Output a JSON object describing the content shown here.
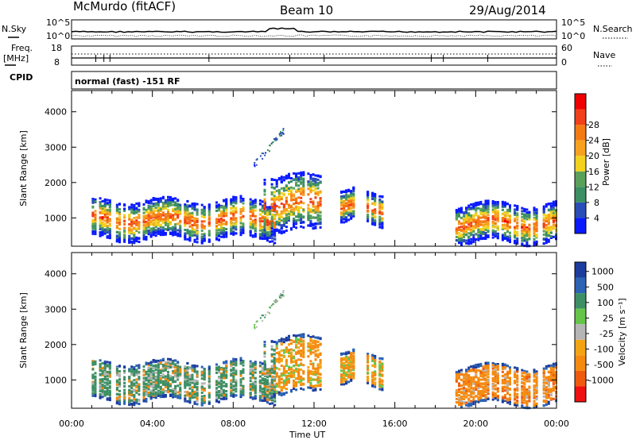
{
  "header": {
    "station": "McMurdo (fitACF)",
    "beam": "Beam 10",
    "date": "29/Aug/2014"
  },
  "top_panels": {
    "nsky_label": "N.Sky",
    "nsearch_label": "N.Search",
    "noise_ticks": [
      "10^5",
      "10^0"
    ],
    "freq_label": "Freq.",
    "freq_unit": "[MHz]",
    "freq_ticks": [
      "18",
      "8"
    ],
    "nave_label": "Nave",
    "nave_ticks": [
      "60",
      "0"
    ],
    "cpid_label": "CPID",
    "cpid_text": "normal (fast) -151 RF"
  },
  "colors": {
    "power_scale": [
      "#0a1aff",
      "#2a4db8",
      "#3b8f62",
      "#59a05a",
      "#f2d21c",
      "#f7a21e",
      "#f47a12",
      "#f2401a",
      "#f00000"
    ],
    "velocity_scale": [
      "#1c3c9e",
      "#2c63b5",
      "#3c8f64",
      "#65c54a",
      "#b5b5b5",
      "#f4a413",
      "#f58a0f",
      "#f05a0f",
      "#f01010"
    ]
  },
  "chart_data": [
    {
      "type": "heatmap",
      "name": "power-panel",
      "ylabel": "Slant Range [km]",
      "yticks": [
        1000,
        2000,
        3000,
        4000
      ],
      "ylim": [
        200,
        4600
      ],
      "xticks": [
        "00:00",
        "04:00",
        "08:00",
        "12:00",
        "16:00",
        "20:00",
        "00:00"
      ],
      "xlim_hours": [
        0,
        24
      ],
      "colorbar": {
        "label": "Power [dB]",
        "ticks": [
          "4",
          "8",
          "12",
          "16",
          "20",
          "24",
          "28"
        ],
        "range": [
          0,
          32
        ]
      },
      "echo_bands": [
        {
          "start_hour": 1.0,
          "end_hour": 10.0,
          "range_low_km": 400,
          "range_high_km": 1500
        },
        {
          "start_hour": 9.5,
          "end_hour": 12.3,
          "range_low_km": 600,
          "range_high_km": 2200
        },
        {
          "start_hour": 13.3,
          "end_hour": 14.0,
          "range_low_km": 900,
          "range_high_km": 1800
        },
        {
          "start_hour": 14.6,
          "end_hour": 15.5,
          "range_low_km": 800,
          "range_high_km": 1700
        },
        {
          "start_hour": 19.0,
          "end_hour": 24.0,
          "range_low_km": 300,
          "range_high_km": 1400
        }
      ]
    },
    {
      "type": "heatmap",
      "name": "velocity-panel",
      "ylabel": "Slant Range [km]",
      "xlabel": "Time UT",
      "yticks": [
        1000,
        2000,
        3000,
        4000
      ],
      "ylim": [
        200,
        4600
      ],
      "xticks": [
        "00:00",
        "04:00",
        "08:00",
        "12:00",
        "16:00",
        "20:00",
        "00:00"
      ],
      "xlim_hours": [
        0,
        24
      ],
      "colorbar": {
        "label": "Velocity [m s⁻¹]",
        "ticks": [
          "1000",
          "500",
          "100",
          "25",
          "-25",
          "-100",
          "-500",
          "-1000"
        ]
      }
    }
  ]
}
